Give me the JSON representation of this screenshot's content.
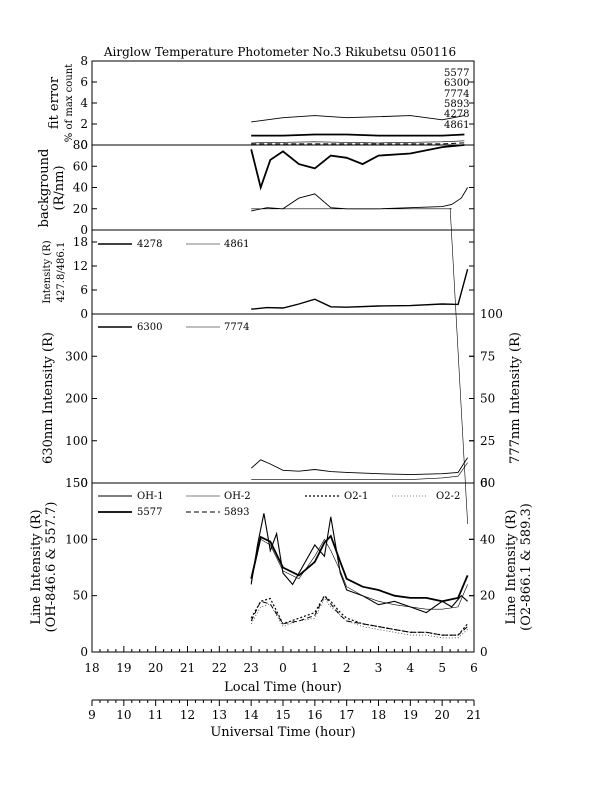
{
  "title": "Airglow Temperature Photometer No.3  Rikubetsu  050116",
  "xaxis_local": {
    "label": "Local Time (hour)",
    "ticks": [
      "18",
      "19",
      "20",
      "21",
      "22",
      "23",
      "0",
      "1",
      "2",
      "3",
      "4",
      "5",
      "6"
    ]
  },
  "xaxis_ut": {
    "label": "Universal Time (hour)",
    "ticks": [
      "9",
      "10",
      "11",
      "12",
      "13",
      "14",
      "15",
      "16",
      "17",
      "18",
      "19",
      "20",
      "21"
    ]
  },
  "panels": {
    "fit_error": {
      "ylabel_1": "fit error",
      "ylabel_2": "% of max count",
      "yticks": [
        "0",
        "2",
        "4",
        "6",
        "8"
      ],
      "labels": [
        "5577",
        "6300",
        "7774",
        "5893",
        "4278",
        "4861"
      ]
    },
    "background": {
      "ylabel_1": "background",
      "ylabel_2": "(R/nm)",
      "yticks": [
        "0",
        "20",
        "40",
        "60",
        "80"
      ]
    },
    "blue": {
      "ylabel_1": "Intensity (R)",
      "ylabel_2": "427.8/486.1",
      "yticks": [
        "0",
        "6",
        "12",
        "18"
      ],
      "legend": [
        "4278",
        "4861"
      ]
    },
    "red": {
      "ylabel_left": "630nm Intensity (R)",
      "ylabel_right": "777nm Intensity (R)",
      "yticks_left": [
        "0",
        "100",
        "200",
        "300"
      ],
      "yticks_right": [
        "0",
        "25",
        "50",
        "75",
        "100"
      ],
      "legend": [
        "6300",
        "7774"
      ]
    },
    "line": {
      "ylabel_left_1": "Line Intensity (R)",
      "ylabel_left_2": "(OH-846.6 & 557.7)",
      "ylabel_right_1": "Line Intensity (R)",
      "ylabel_right_2": "(O2-866.1 & 589.3)",
      "yticks_left": [
        "0",
        "50",
        "100",
        "150"
      ],
      "yticks_right": [
        "0",
        "20",
        "40",
        "60"
      ],
      "legend": [
        "OH-1",
        "OH-2",
        "O2-1",
        "O2-2",
        "5577",
        "5893"
      ]
    }
  },
  "chart_data": {
    "type": "line",
    "title": "Airglow Temperature Photometer No.3  Rikubetsu  050116",
    "x_unit": "Universal Time (hour)",
    "xlim_ut": [
      9,
      21
    ],
    "xlim_local": [
      18,
      30
    ],
    "panels": [
      {
        "name": "fit error",
        "ylim": [
          0,
          8
        ],
        "series": [
          {
            "name": "5577",
            "x": [
              14.0,
              15.0,
              16.0,
              17.0,
              18.0,
              19.0,
              20.0,
              20.7
            ],
            "y": [
              0.9,
              0.9,
              1.0,
              1.0,
              0.9,
              0.9,
              0.9,
              1.0
            ]
          },
          {
            "name": "6300",
            "x": [
              14.0,
              15.0,
              16.0,
              17.0,
              18.0,
              19.0,
              20.0,
              20.7
            ],
            "y": [
              2.2,
              2.6,
              2.8,
              2.6,
              2.7,
              2.8,
              2.4,
              2.8
            ]
          },
          {
            "name": "7774",
            "x": [
              14.0,
              16.0,
              18.0,
              20.0,
              20.7
            ],
            "y": [
              0.2,
              0.3,
              0.2,
              0.3,
              0.4
            ]
          },
          {
            "name": "5893",
            "x": [
              14.0,
              16.0,
              18.0,
              20.0,
              20.7
            ],
            "y": [
              0.1,
              0.1,
              0.1,
              0.1,
              0.2
            ]
          }
        ]
      },
      {
        "name": "background",
        "ylim": [
          0,
          80
        ],
        "series": [
          {
            "name": "5577",
            "x": [
              14.0,
              14.3,
              14.6,
              15.0,
              15.5,
              16.0,
              16.5,
              17.0,
              17.5,
              18.0,
              19.0,
              20.0,
              20.7
            ],
            "y": [
              76,
              40,
              66,
              74,
              62,
              58,
              70,
              68,
              62,
              70,
              72,
              78,
              80
            ]
          },
          {
            "name": "6300",
            "x": [
              14.0,
              14.5,
              15.0,
              15.5,
              16.0,
              16.5,
              17.0,
              18.0,
              19.0,
              20.0,
              20.3,
              20.6,
              20.8
            ],
            "y": [
              18,
              21,
              20,
              30,
              34,
              21,
              20,
              20,
              21,
              22,
              24,
              30,
              40
            ]
          },
          {
            "name": "7774",
            "x": [
              14.0,
              15.0,
              16.0,
              17.0,
              18.0,
              19.0,
              20.0,
              20.3
            ],
            "y": [
              20,
              20,
              20,
              20,
              20,
              20,
              20,
              20
            ]
          }
        ]
      },
      {
        "name": "427.8/486.1 intensity",
        "ylim": [
          0,
          21
        ],
        "series": [
          {
            "name": "4278",
            "x": [
              14.0,
              14.5,
              15.0,
              15.5,
              16.0,
              16.5,
              17.0,
              18.0,
              19.0,
              20.0,
              20.5,
              20.8
            ],
            "y": [
              1.2,
              1.6,
              1.5,
              2.5,
              3.7,
              1.8,
              1.7,
              2.0,
              2.1,
              2.5,
              2.4,
              11.2
            ]
          }
        ]
      },
      {
        "name": "630/777 intensity",
        "ylim_left": [
          0,
          400
        ],
        "ylim_right": [
          0,
          100
        ],
        "series": [
          {
            "name": "6300",
            "x": [
              14.0,
              14.3,
              14.6,
              15.0,
              15.5,
              16.0,
              16.5,
              17.0,
              18.0,
              19.0,
              20.0,
              20.5,
              20.8
            ],
            "y": [
              35,
              55,
              45,
              30,
              28,
              32,
              27,
              25,
              22,
              20,
              22,
              25,
              60
            ]
          },
          {
            "name": "7774",
            "x": [
              14.0,
              15.0,
              16.0,
              17.0,
              18.0,
              19.0,
              20.0,
              20.5,
              20.8
            ],
            "y": [
              2,
              2,
              2,
              2,
              2,
              2,
              3,
              4,
              12
            ]
          }
        ]
      },
      {
        "name": "line intensity",
        "ylim_left": [
          0,
          150
        ],
        "ylim_right": [
          0,
          60
        ],
        "series": [
          {
            "name": "OH-1",
            "x": [
              14.0,
              14.2,
              14.4,
              14.6,
              14.8,
              15.0,
              15.3,
              15.6,
              16.0,
              16.3,
              16.5,
              16.8,
              17.0,
              17.5,
              18.0,
              18.5,
              19.0,
              19.5,
              20.0,
              20.3,
              20.6,
              20.8
            ],
            "y": [
              60,
              95,
              123,
              90,
              105,
              70,
              60,
              75,
              95,
              85,
              120,
              70,
              55,
              50,
              42,
              45,
              40,
              35,
              45,
              40,
              50,
              45
            ]
          },
          {
            "name": "OH-2",
            "x": [
              14.0,
              14.3,
              14.6,
              15.0,
              15.5,
              16.0,
              16.3,
              16.5,
              16.8,
              17.0,
              17.5,
              18.0,
              18.5,
              19.0,
              19.5,
              20.0,
              20.5,
              20.8
            ],
            "y": [
              62,
              100,
              95,
              72,
              65,
              85,
              100,
              90,
              72,
              58,
              50,
              45,
              42,
              40,
              38,
              38,
              40,
              60
            ]
          },
          {
            "name": "5577",
            "x": [
              14.0,
              14.3,
              14.6,
              15.0,
              15.5,
              16.0,
              16.3,
              16.5,
              16.8,
              17.0,
              17.5,
              18.0,
              18.5,
              19.0,
              19.5,
              20.0,
              20.5,
              20.8
            ],
            "y": [
              65,
              102,
              98,
              75,
              68,
              80,
              97,
              103,
              80,
              65,
              58,
              55,
              50,
              48,
              48,
              45,
              48,
              68
            ]
          },
          {
            "name": "O2-1",
            "x": [
              14.0,
              14.3,
              14.6,
              15.0,
              15.5,
              16.0,
              16.3,
              16.5,
              16.8,
              17.0,
              17.5,
              18.0,
              18.5,
              19.0,
              19.5,
              20.0,
              20.5,
              20.8
            ],
            "y": [
              12,
              18,
              19,
              10,
              12,
              14,
              20,
              18,
              14,
              12,
              10,
              9,
              8,
              7,
              7,
              6,
              6,
              10
            ]
          },
          {
            "name": "O2-2",
            "x": [
              14.0,
              14.3,
              14.6,
              15.0,
              15.5,
              16.0,
              16.3,
              16.5,
              16.8,
              17.0,
              17.5,
              18.0,
              18.5,
              19.0,
              19.5,
              20.0,
              20.5,
              20.8
            ],
            "y": [
              10,
              16,
              17,
              9,
              11,
              12,
              19,
              16,
              13,
              11,
              9,
              8,
              7,
              6,
              6,
              5,
              5,
              8
            ]
          },
          {
            "name": "5893",
            "x": [
              14.0,
              14.3,
              14.6,
              15.0,
              15.5,
              16.0,
              16.3,
              16.5,
              16.8,
              17.0,
              17.5,
              18.0,
              18.5,
              19.0,
              19.5,
              20.0,
              20.5,
              20.8
            ],
            "y": [
              11,
              18,
              17,
              10,
              11,
              13,
              20,
              17,
              13,
              11,
              10,
              9,
              8,
              7,
              7,
              6,
              6,
              9
            ]
          }
        ]
      }
    ]
  }
}
